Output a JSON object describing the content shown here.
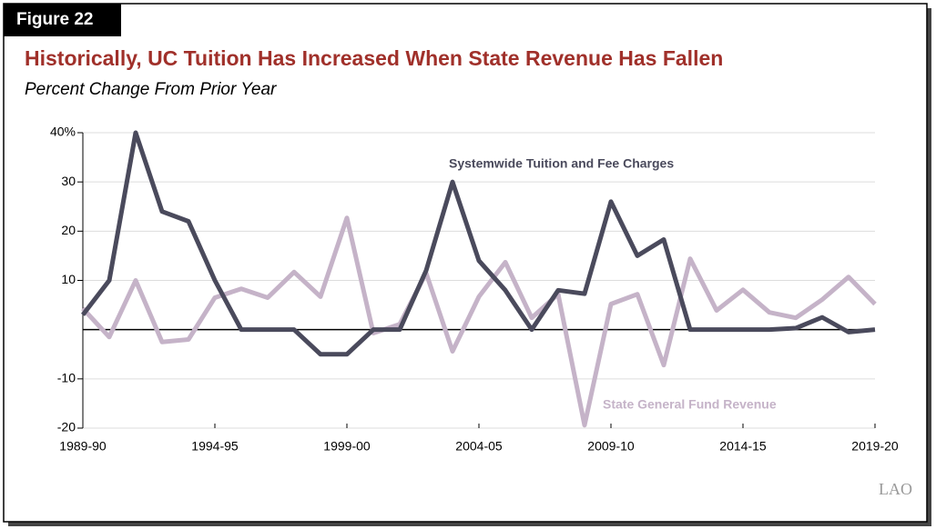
{
  "figure_label": "Figure 22",
  "source_logo": "LAO",
  "chart_data": {
    "type": "line",
    "title": "Historically, UC Tuition Has Increased When State Revenue Has Fallen",
    "subtitle": "Percent Change From Prior Year",
    "categories": [
      "1989-90",
      null,
      null,
      null,
      null,
      "1994-95",
      null,
      null,
      null,
      null,
      "1999-00",
      null,
      null,
      null,
      null,
      "2004-05",
      null,
      null,
      null,
      null,
      "2009-10",
      null,
      null,
      null,
      null,
      "2014-15",
      null,
      null,
      null,
      null,
      "2019-20"
    ],
    "series": [
      {
        "name": "Systemwide Tuition and Fee Charges",
        "color": "#4a4a5c",
        "values": [
          3,
          10,
          40,
          24,
          22,
          10,
          0,
          0,
          0,
          -5,
          -5,
          0,
          0,
          12,
          30,
          14,
          8,
          0,
          8,
          7.3,
          26,
          15,
          18.3,
          0,
          0,
          0,
          0,
          0.3,
          2.5,
          -0.5,
          0
        ]
      },
      {
        "name": "State General Fund Revenue",
        "color": "#c5b3c8",
        "values": [
          4.3,
          -1.5,
          10,
          -2.5,
          -2,
          6.5,
          8.3,
          6.5,
          11.7,
          6.7,
          22.7,
          -0.7,
          1.1,
          11.5,
          -4.4,
          6.7,
          13.7,
          2.4,
          7.2,
          -19.4,
          5.2,
          7.2,
          -7.2,
          14.4,
          3.9,
          8.1,
          3.5,
          2.4,
          6.1,
          10.7,
          5.2
        ]
      }
    ],
    "ylim": [
      -20,
      40
    ],
    "yticks": [
      -20,
      -10,
      10,
      20,
      30,
      {
        "value": 40,
        "label": "40%"
      }
    ],
    "grid": true
  }
}
